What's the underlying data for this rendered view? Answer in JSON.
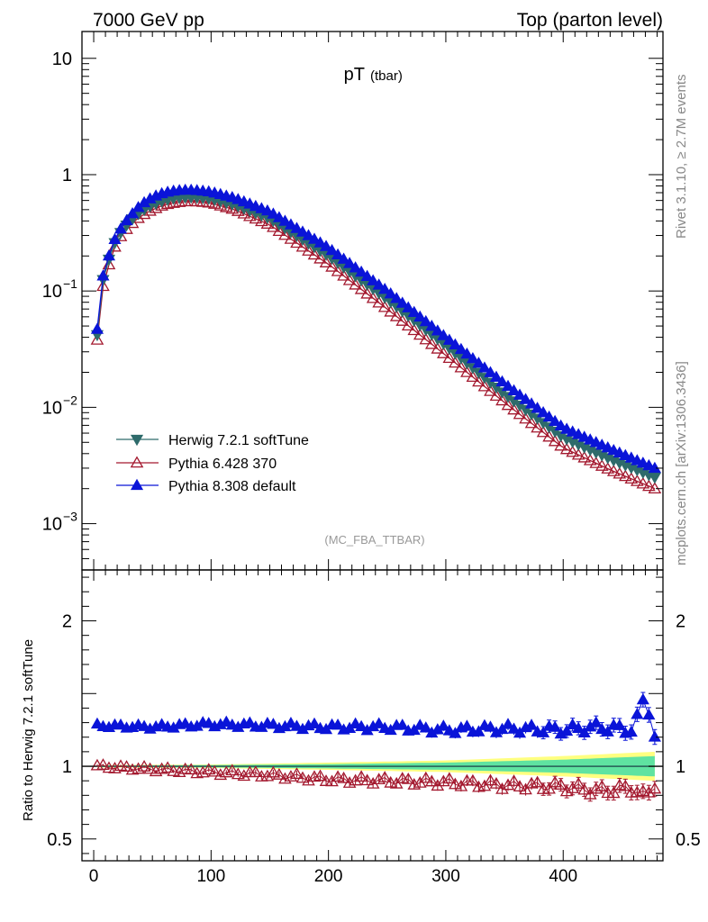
{
  "header": {
    "left": "7000 GeV pp",
    "right": "Top (parton level)"
  },
  "plot_title": {
    "main": "pT",
    "sub": "(tbar)"
  },
  "side_labels": {
    "rivet": "Rivet 3.1.10, ≥ 2.7M events",
    "mcplots": "mcplots.cern.ch [arXiv:1306.3436]"
  },
  "analysis_tag": "(MC_FBA_TTBAR)",
  "ratio_ylabel": "Ratio to Herwig 7.2.1 softTune",
  "colors": {
    "herwig": "#2e6b6b",
    "pythia6": "#a3182e",
    "pythia8": "#0a14d8",
    "band_green": "#5fe3a1",
    "band_yellow": "#ffff80"
  },
  "chart_data": [
    {
      "type": "line",
      "panel": "main",
      "yscale": "log",
      "xlim": [
        -10,
        485
      ],
      "ylim": [
        0.0004,
        17
      ],
      "x_ticks": [
        0,
        100,
        200,
        300,
        400
      ],
      "y_ticks": [
        {
          "value": 10,
          "base": "10",
          "exp": ""
        },
        {
          "value": 1,
          "base": "1",
          "exp": ""
        },
        {
          "value": 0.1,
          "base": "10",
          "exp": "−1"
        },
        {
          "value": 0.01,
          "base": "10",
          "exp": "−2"
        },
        {
          "value": 0.001,
          "base": "10",
          "exp": "−3"
        }
      ],
      "legend": "middle-left",
      "series": [
        {
          "name": "Herwig 7.2.1 softTune",
          "key": "herwig",
          "marker": "triangle-down-filled",
          "anchors_x": [
            3,
            8,
            15,
            20,
            30,
            40,
            50,
            60,
            70,
            80,
            90,
            100,
            120,
            150,
            200,
            250,
            300,
            350,
            400,
            440,
            478
          ],
          "anchors_y": [
            0.042,
            0.125,
            0.22,
            0.29,
            0.39,
            0.48,
            0.55,
            0.6,
            0.63,
            0.64,
            0.635,
            0.62,
            0.55,
            0.42,
            0.2,
            0.085,
            0.034,
            0.013,
            0.0055,
            0.0036,
            0.0025
          ]
        },
        {
          "name": "Pythia 6.428 370",
          "key": "pythia6",
          "marker": "triangle-up-open",
          "anchors_x": [
            3,
            8,
            15,
            20,
            30,
            40,
            50,
            60,
            70,
            80,
            90,
            100,
            120,
            150,
            200,
            250,
            300,
            350,
            400,
            440,
            478
          ],
          "anchors_y": [
            0.038,
            0.11,
            0.2,
            0.27,
            0.36,
            0.44,
            0.5,
            0.55,
            0.575,
            0.59,
            0.585,
            0.57,
            0.5,
            0.37,
            0.17,
            0.07,
            0.028,
            0.011,
            0.0045,
            0.0029,
            0.002
          ]
        },
        {
          "name": "Pythia 8.308 default",
          "key": "pythia8",
          "marker": "triangle-up-filled",
          "anchors_x": [
            3,
            8,
            15,
            20,
            30,
            40,
            50,
            60,
            70,
            80,
            90,
            100,
            120,
            150,
            200,
            250,
            300,
            350,
            400,
            440,
            478
          ],
          "anchors_y": [
            0.047,
            0.135,
            0.235,
            0.31,
            0.43,
            0.55,
            0.64,
            0.7,
            0.73,
            0.74,
            0.73,
            0.71,
            0.63,
            0.48,
            0.235,
            0.1,
            0.04,
            0.016,
            0.0067,
            0.0044,
            0.003
          ]
        }
      ]
    },
    {
      "type": "line",
      "panel": "ratio",
      "yscale": "linear",
      "xlim": [
        -10,
        485
      ],
      "ylim": [
        0.35,
        2.35
      ],
      "x_ticks": [
        0,
        100,
        200,
        300,
        400
      ],
      "y_ticks": [
        0.5,
        1,
        2
      ],
      "series": [
        {
          "name": "Pythia 6.428 370",
          "key": "pythia6",
          "anchors_x": [
            3,
            50,
            100,
            150,
            200,
            250,
            300,
            350,
            400,
            430,
            460,
            470,
            478
          ],
          "anchors_y": [
            1.0,
            0.98,
            0.96,
            0.94,
            0.91,
            0.9,
            0.89,
            0.87,
            0.86,
            0.83,
            0.85,
            0.78,
            0.88
          ]
        },
        {
          "name": "Pythia 8.308 default",
          "key": "pythia8",
          "anchors_x": [
            3,
            50,
            100,
            150,
            200,
            250,
            300,
            350,
            400,
            430,
            460,
            470,
            478
          ],
          "anchors_y": [
            1.28,
            1.27,
            1.29,
            1.28,
            1.27,
            1.27,
            1.25,
            1.26,
            1.25,
            1.27,
            1.25,
            1.5,
            1.2
          ]
        }
      ],
      "band": {
        "anchors_x": [
          3,
          100,
          200,
          300,
          400,
          478
        ],
        "green_halfwidth": [
          0.005,
          0.008,
          0.015,
          0.025,
          0.045,
          0.07
        ],
        "yellow_halfwidth": [
          0.008,
          0.012,
          0.025,
          0.04,
          0.07,
          0.1
        ]
      }
    }
  ]
}
